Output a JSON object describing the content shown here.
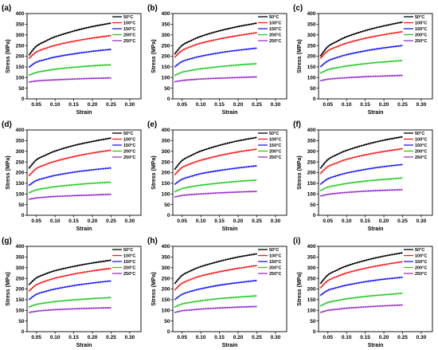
{
  "chart_data": [
    {
      "type": "line",
      "label": "(a)",
      "xlabel": "Strain",
      "ylabel": "Stress (MPa)",
      "xlim": [
        0.025,
        0.33
      ],
      "ylim": [
        0,
        400
      ],
      "xticks": [
        "0.05",
        "0.10",
        "0.15",
        "0.20",
        "0.25",
        "0.30"
      ],
      "yticks": [
        0,
        50,
        100,
        150,
        200,
        250,
        300,
        350,
        400
      ],
      "grid": false,
      "legend_position": "top-right",
      "x": [
        0.03,
        0.05,
        0.075,
        0.1,
        0.15,
        0.2,
        0.25
      ],
      "series": [
        {
          "name": "50°C",
          "color": "#000000",
          "values": [
            205,
            247,
            271,
            291,
            318,
            339,
            355
          ]
        },
        {
          "name": "100°C",
          "color": "#ff1a1a",
          "values": [
            190,
            220,
            237,
            251,
            270,
            285,
            297
          ]
        },
        {
          "name": "150°C",
          "color": "#1a1aff",
          "values": [
            148,
            172,
            185,
            196,
            211,
            223,
            232
          ]
        },
        {
          "name": "200°C",
          "color": "#22cc22",
          "values": [
            110,
            124,
            132,
            139,
            148,
            155,
            160
          ]
        },
        {
          "name": "250°C",
          "color": "#9b30d0",
          "values": [
            78,
            84,
            87,
            89,
            93,
            96,
            98
          ]
        }
      ]
    },
    {
      "type": "line",
      "label": "(b)",
      "xlabel": "Strain",
      "ylabel": "Stress (MPa)",
      "xlim": [
        0.025,
        0.33
      ],
      "ylim": [
        0,
        400
      ],
      "xticks": [
        "0.05",
        "0.10",
        "0.15",
        "0.20",
        "0.25",
        "0.30"
      ],
      "yticks": [
        0,
        50,
        100,
        150,
        200,
        250,
        300,
        350,
        400
      ],
      "grid": false,
      "legend_position": "top-right",
      "x": [
        0.03,
        0.05,
        0.075,
        0.1,
        0.15,
        0.2,
        0.25
      ],
      "series": [
        {
          "name": "50°C",
          "color": "#000000",
          "values": [
            210,
            251,
            274,
            293,
            319,
            339,
            355
          ]
        },
        {
          "name": "100°C",
          "color": "#ff1a1a",
          "values": [
            195,
            227,
            246,
            261,
            281,
            297,
            310
          ]
        },
        {
          "name": "150°C",
          "color": "#1a1aff",
          "values": [
            150,
            175,
            189,
            200,
            216,
            228,
            238
          ]
        },
        {
          "name": "200°C",
          "color": "#22cc22",
          "values": [
            110,
            125,
            134,
            141,
            151,
            159,
            165
          ]
        },
        {
          "name": "250°C",
          "color": "#9b30d0",
          "values": [
            80,
            86,
            90,
            93,
            97,
            100,
            103
          ]
        }
      ]
    },
    {
      "type": "line",
      "label": "(c)",
      "xlabel": "Strain",
      "ylabel": "Stress (MPa)",
      "xlim": [
        0.025,
        0.33
      ],
      "ylim": [
        0,
        400
      ],
      "xticks": [
        "0.05",
        "0.10",
        "0.15",
        "0.20",
        "0.25",
        "0.30"
      ],
      "yticks": [
        0,
        50,
        100,
        150,
        200,
        250,
        300,
        350,
        400
      ],
      "grid": false,
      "legend_position": "top-right",
      "x": [
        0.03,
        0.05,
        0.075,
        0.1,
        0.15,
        0.2,
        0.25
      ],
      "series": [
        {
          "name": "50°C",
          "color": "#000000",
          "values": [
            200,
            245,
            270,
            291,
            320,
            342,
            360
          ]
        },
        {
          "name": "100°C",
          "color": "#ff1a1a",
          "values": [
            190,
            225,
            245,
            261,
            284,
            301,
            315
          ]
        },
        {
          "name": "150°C",
          "color": "#1a1aff",
          "values": [
            150,
            178,
            194,
            207,
            225,
            239,
            250
          ]
        },
        {
          "name": "200°C",
          "color": "#22cc22",
          "values": [
            120,
            137,
            146,
            154,
            165,
            173,
            180
          ]
        },
        {
          "name": "250°C",
          "color": "#9b30d0",
          "values": [
            85,
            92,
            96,
            99,
            104,
            107,
            110
          ]
        }
      ]
    },
    {
      "type": "line",
      "label": "(d)",
      "xlabel": "Strain",
      "ylabel": "Stress (MPa)",
      "xlim": [
        0.025,
        0.33
      ],
      "ylim": [
        0,
        400
      ],
      "xticks": [
        "0.05",
        "0.10",
        "0.15",
        "0.20",
        "0.25",
        "0.30"
      ],
      "yticks": [
        0,
        50,
        100,
        150,
        200,
        250,
        300,
        350,
        400
      ],
      "grid": false,
      "legend_position": "top-right",
      "x": [
        0.03,
        0.05,
        0.075,
        0.1,
        0.15,
        0.2,
        0.25
      ],
      "series": [
        {
          "name": "50°C",
          "color": "#000000",
          "values": [
            220,
            260,
            282,
            301,
            327,
            346,
            362
          ]
        },
        {
          "name": "100°C",
          "color": "#ff1a1a",
          "values": [
            185,
            219,
            238,
            253,
            275,
            292,
            305
          ]
        },
        {
          "name": "150°C",
          "color": "#1a1aff",
          "values": [
            140,
            163,
            176,
            187,
            202,
            213,
            222
          ]
        },
        {
          "name": "200°C",
          "color": "#22cc22",
          "values": [
            105,
            119,
            127,
            134,
            143,
            150,
            155
          ]
        },
        {
          "name": "250°C",
          "color": "#9b30d0",
          "values": [
            75,
            81,
            85,
            88,
            92,
            95,
            98
          ]
        }
      ]
    },
    {
      "type": "line",
      "label": "(e)",
      "xlabel": "Strain",
      "ylabel": "Stress (MPa)",
      "xlim": [
        0.025,
        0.33
      ],
      "ylim": [
        0,
        400
      ],
      "xticks": [
        "0.05",
        "0.10",
        "0.15",
        "0.20",
        "0.25",
        "0.30"
      ],
      "yticks": [
        0,
        50,
        100,
        150,
        200,
        250,
        300,
        350,
        400
      ],
      "grid": false,
      "legend_position": "top-right",
      "x": [
        0.03,
        0.05,
        0.075,
        0.1,
        0.15,
        0.2,
        0.25
      ],
      "series": [
        {
          "name": "50°C",
          "color": "#000000",
          "values": [
            215,
            257,
            281,
            301,
            328,
            349,
            365
          ]
        },
        {
          "name": "100°C",
          "color": "#ff1a1a",
          "values": [
            190,
            224,
            243,
            258,
            280,
            297,
            310
          ]
        },
        {
          "name": "150°C",
          "color": "#1a1aff",
          "values": [
            145,
            169,
            183,
            195,
            210,
            222,
            232
          ]
        },
        {
          "name": "200°C",
          "color": "#22cc22",
          "values": [
            110,
            125,
            134,
            141,
            151,
            159,
            165
          ]
        },
        {
          "name": "250°C",
          "color": "#9b30d0",
          "values": [
            85,
            93,
            97,
            100,
            105,
            109,
            112
          ]
        }
      ]
    },
    {
      "type": "line",
      "label": "(f)",
      "xlabel": "Strain",
      "ylabel": "Stress (MPa)",
      "xlim": [
        0.025,
        0.33
      ],
      "ylim": [
        0,
        400
      ],
      "xticks": [
        "0.05",
        "0.10",
        "0.15",
        "0.20",
        "0.25",
        "0.30"
      ],
      "yticks": [
        0,
        50,
        100,
        150,
        200,
        250,
        300,
        350,
        400
      ],
      "grid": false,
      "legend_position": "top-right",
      "x": [
        0.03,
        0.05,
        0.075,
        0.1,
        0.15,
        0.2,
        0.25
      ],
      "series": [
        {
          "name": "50°C",
          "color": "#000000",
          "values": [
            220,
            261,
            285,
            304,
            331,
            352,
            368
          ]
        },
        {
          "name": "100°C",
          "color": "#ff1a1a",
          "values": [
            195,
            228,
            246,
            262,
            283,
            299,
            312
          ]
        },
        {
          "name": "150°C",
          "color": "#1a1aff",
          "values": [
            145,
            171,
            186,
            198,
            215,
            228,
            238
          ]
        },
        {
          "name": "200°C",
          "color": "#22cc22",
          "values": [
            115,
            132,
            141,
            149,
            160,
            168,
            175
          ]
        },
        {
          "name": "250°C",
          "color": "#9b30d0",
          "values": [
            90,
            98,
            103,
            107,
            113,
            117,
            120
          ]
        }
      ]
    },
    {
      "type": "line",
      "label": "(g)",
      "xlabel": "Strain",
      "ylabel": "Stress (MPa)",
      "xlim": [
        0.025,
        0.33
      ],
      "ylim": [
        0,
        400
      ],
      "xticks": [
        "0.05",
        "0.10",
        "0.15",
        "0.20",
        "0.25",
        "0.30"
      ],
      "yticks": [
        0,
        50,
        100,
        150,
        200,
        250,
        300,
        350,
        400
      ],
      "grid": false,
      "legend_position": "top-right",
      "x": [
        0.03,
        0.05,
        0.075,
        0.1,
        0.15,
        0.2,
        0.25
      ],
      "series": [
        {
          "name": "50°C",
          "color": "#000000",
          "values": [
            220,
            252,
            271,
            286,
            306,
            322,
            335
          ]
        },
        {
          "name": "100°C",
          "color": "#ff1a1a",
          "values": [
            190,
            220,
            237,
            251,
            270,
            285,
            297
          ]
        },
        {
          "name": "150°C",
          "color": "#1a1aff",
          "values": [
            150,
            175,
            189,
            200,
            216,
            228,
            238
          ]
        },
        {
          "name": "200°C",
          "color": "#22cc22",
          "values": [
            115,
            128,
            135,
            141,
            149,
            155,
            160
          ]
        },
        {
          "name": "250°C",
          "color": "#9b30d0",
          "values": [
            90,
            96,
            100,
            103,
            107,
            110,
            112
          ]
        }
      ]
    },
    {
      "type": "line",
      "label": "(h)",
      "xlabel": "Strain",
      "ylabel": "Stress (MPa)",
      "xlim": [
        0.025,
        0.33
      ],
      "ylim": [
        0,
        400
      ],
      "xticks": [
        "0.05",
        "0.10",
        "0.15",
        "0.20",
        "0.25",
        "0.30"
      ],
      "yticks": [
        0,
        50,
        100,
        150,
        200,
        250,
        300,
        350,
        400
      ],
      "grid": false,
      "legend_position": "top-right",
      "x": [
        0.03,
        0.05,
        0.075,
        0.1,
        0.15,
        0.2,
        0.25
      ],
      "series": [
        {
          "name": "50°C",
          "color": "#000000",
          "values": [
            225,
            264,
            287,
            305,
            330,
            350,
            365
          ]
        },
        {
          "name": "100°C",
          "color": "#ff1a1a",
          "values": [
            195,
            227,
            246,
            261,
            281,
            297,
            310
          ]
        },
        {
          "name": "150°C",
          "color": "#1a1aff",
          "values": [
            150,
            175,
            190,
            201,
            218,
            230,
            240
          ]
        },
        {
          "name": "200°C",
          "color": "#22cc22",
          "values": [
            115,
            130,
            138,
            145,
            155,
            162,
            168
          ]
        },
        {
          "name": "250°C",
          "color": "#9b30d0",
          "values": [
            90,
            98,
            102,
            106,
            111,
            115,
            118
          ]
        }
      ]
    },
    {
      "type": "line",
      "label": "(i)",
      "xlabel": "Strain",
      "ylabel": "Stress (MPa)",
      "xlim": [
        0.025,
        0.33
      ],
      "ylim": [
        0,
        400
      ],
      "xticks": [
        "0.05",
        "0.10",
        "0.15",
        "0.20",
        "0.25",
        "0.30"
      ],
      "yticks": [
        0,
        50,
        100,
        150,
        200,
        250,
        300,
        350,
        400
      ],
      "grid": false,
      "legend_position": "top-right",
      "x": [
        0.03,
        0.05,
        0.075,
        0.1,
        0.15,
        0.2,
        0.25
      ],
      "series": [
        {
          "name": "50°C",
          "color": "#000000",
          "values": [
            225,
            266,
            289,
            308,
            334,
            354,
            370
          ]
        },
        {
          "name": "100°C",
          "color": "#ff1a1a",
          "values": [
            205,
            239,
            259,
            275,
            297,
            314,
            328
          ]
        },
        {
          "name": "150°C",
          "color": "#1a1aff",
          "values": [
            170,
            194,
            207,
            218,
            234,
            246,
            255
          ]
        },
        {
          "name": "200°C",
          "color": "#22cc22",
          "values": [
            120,
            137,
            146,
            154,
            165,
            173,
            180
          ]
        },
        {
          "name": "250°C",
          "color": "#9b30d0",
          "values": [
            90,
            100,
            105,
            110,
            116,
            121,
            125
          ]
        }
      ]
    }
  ]
}
